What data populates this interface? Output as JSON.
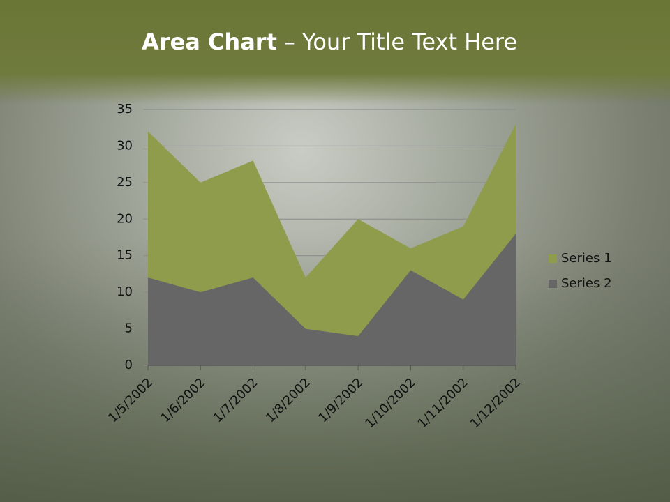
{
  "chart_data": {
    "type": "area",
    "title": [
      "Area Chart",
      "– Your Title Text Here"
    ],
    "categories": [
      "1/5/2002",
      "1/6/2002",
      "1/7/2002",
      "1/8/2002",
      "1/9/2002",
      "1/10/2002",
      "1/11/2002",
      "1/12/2002"
    ],
    "series": [
      {
        "name": "Series 1",
        "color": "#8e9c4c",
        "values": [
          32,
          25,
          28,
          12,
          20,
          16,
          19,
          33
        ]
      },
      {
        "name": "Series 2",
        "color": "#666666",
        "values": [
          12,
          10,
          12,
          5,
          4,
          13,
          9,
          18
        ]
      }
    ],
    "ylim": [
      0,
      35
    ],
    "yticks": [
      0,
      5,
      10,
      15,
      20,
      25,
      30,
      35
    ],
    "grid": true,
    "legend": "right"
  }
}
